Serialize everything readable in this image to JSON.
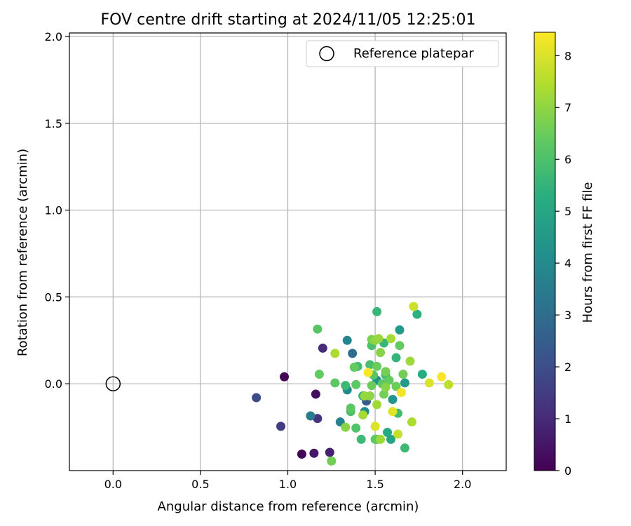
{
  "chart_data": {
    "type": "scatter",
    "title": "FOV centre drift starting at 2024/11/05 12:25:01",
    "xlabel": "Angular distance from reference (arcmin)",
    "ylabel": "Rotation from reference (arcmin)",
    "xlim": [
      -0.25,
      2.25
    ],
    "ylim": [
      -0.5,
      2.02
    ],
    "xticks": [
      0.0,
      0.5,
      1.0,
      1.5,
      2.0
    ],
    "xtick_labels": [
      "0.0",
      "0.5",
      "1.0",
      "1.5",
      "2.0"
    ],
    "yticks": [
      0.0,
      0.5,
      1.0,
      1.5,
      2.0
    ],
    "ytick_labels": [
      "0.0",
      "0.5",
      "1.0",
      "1.5",
      "2.0"
    ],
    "grid": true,
    "legend": {
      "placement": "top-right",
      "entries": [
        "Reference platepar"
      ]
    },
    "reference_point": {
      "x": 0.0,
      "y": 0.0
    },
    "colorbar": {
      "label": "Hours from first FF file",
      "colormap": "viridis",
      "range": [
        0,
        8.45
      ],
      "ticks": [
        0,
        1,
        2,
        3,
        4,
        5,
        6,
        7,
        8
      ],
      "tick_labels": [
        "0",
        "1",
        "2",
        "3",
        "4",
        "5",
        "6",
        "7",
        "8"
      ]
    },
    "points": [
      {
        "x": 0.98,
        "y": 0.04,
        "c": 0.1
      },
      {
        "x": 1.08,
        "y": -0.405,
        "c": 0.1
      },
      {
        "x": 1.16,
        "y": -0.06,
        "c": 0.3
      },
      {
        "x": 1.15,
        "y": -0.4,
        "c": 0.5
      },
      {
        "x": 1.24,
        "y": -0.395,
        "c": 0.8
      },
      {
        "x": 1.2,
        "y": 0.205,
        "c": 1.0
      },
      {
        "x": 1.17,
        "y": -0.2,
        "c": 1.2
      },
      {
        "x": 0.96,
        "y": -0.245,
        "c": 1.5
      },
      {
        "x": 0.82,
        "y": -0.08,
        "c": 1.9
      },
      {
        "x": 1.45,
        "y": -0.1,
        "c": 2.4
      },
      {
        "x": 1.37,
        "y": 0.175,
        "c": 3.0
      },
      {
        "x": 1.13,
        "y": -0.185,
        "c": 3.5
      },
      {
        "x": 1.3,
        "y": -0.22,
        "c": 3.7
      },
      {
        "x": 1.34,
        "y": 0.25,
        "c": 3.8
      },
      {
        "x": 1.34,
        "y": -0.035,
        "c": 4.0
      },
      {
        "x": 1.44,
        "y": -0.16,
        "c": 4.1
      },
      {
        "x": 1.51,
        "y": 0.02,
        "c": 4.3
      },
      {
        "x": 1.6,
        "y": -0.09,
        "c": 4.4
      },
      {
        "x": 1.64,
        "y": 0.31,
        "c": 4.5
      },
      {
        "x": 1.67,
        "y": 0.005,
        "c": 4.6
      },
      {
        "x": 1.59,
        "y": -0.32,
        "c": 4.9
      },
      {
        "x": 1.57,
        "y": -0.28,
        "c": 5.1
      },
      {
        "x": 1.77,
        "y": 0.055,
        "c": 5.2
      },
      {
        "x": 1.74,
        "y": 0.4,
        "c": 5.4
      },
      {
        "x": 1.43,
        "y": -0.07,
        "c": 5.4
      },
      {
        "x": 1.51,
        "y": 0.415,
        "c": 5.6
      },
      {
        "x": 1.55,
        "y": 0.235,
        "c": 5.6
      },
      {
        "x": 1.62,
        "y": 0.15,
        "c": 5.5
      },
      {
        "x": 1.4,
        "y": 0.1,
        "c": 5.8
      },
      {
        "x": 1.47,
        "y": 0.11,
        "c": 5.9
      },
      {
        "x": 1.33,
        "y": -0.01,
        "c": 5.7
      },
      {
        "x": 1.56,
        "y": 0.05,
        "c": 5.8
      },
      {
        "x": 1.48,
        "y": 0.22,
        "c": 6.0
      },
      {
        "x": 1.63,
        "y": -0.17,
        "c": 5.8
      },
      {
        "x": 1.51,
        "y": -0.32,
        "c": 5.9
      },
      {
        "x": 1.67,
        "y": -0.37,
        "c": 5.7
      },
      {
        "x": 1.42,
        "y": -0.32,
        "c": 5.7
      },
      {
        "x": 1.36,
        "y": -0.16,
        "c": 6.0
      },
      {
        "x": 1.39,
        "y": -0.255,
        "c": 6.1
      },
      {
        "x": 1.17,
        "y": 0.315,
        "c": 6.2
      },
      {
        "x": 1.18,
        "y": 0.055,
        "c": 6.4
      },
      {
        "x": 1.27,
        "y": 0.005,
        "c": 6.3
      },
      {
        "x": 1.39,
        "y": -0.005,
        "c": 6.3
      },
      {
        "x": 1.38,
        "y": 0.095,
        "c": 6.4
      },
      {
        "x": 1.48,
        "y": -0.01,
        "c": 6.5
      },
      {
        "x": 1.49,
        "y": 0.05,
        "c": 6.2
      },
      {
        "x": 1.51,
        "y": 0.1,
        "c": 6.5
      },
      {
        "x": 1.54,
        "y": 0.0,
        "c": 6.3
      },
      {
        "x": 1.56,
        "y": 0.07,
        "c": 6.6
      },
      {
        "x": 1.58,
        "y": 0.02,
        "c": 6.4
      },
      {
        "x": 1.62,
        "y": -0.015,
        "c": 6.5
      },
      {
        "x": 1.64,
        "y": 0.22,
        "c": 6.4
      },
      {
        "x": 1.66,
        "y": 0.055,
        "c": 6.6
      },
      {
        "x": 1.5,
        "y": -0.32,
        "c": 6.3
      },
      {
        "x": 1.55,
        "y": -0.06,
        "c": 6.6
      },
      {
        "x": 1.36,
        "y": -0.14,
        "c": 6.3
      },
      {
        "x": 1.48,
        "y": 0.255,
        "c": 6.7
      },
      {
        "x": 1.53,
        "y": 0.18,
        "c": 6.9
      },
      {
        "x": 1.5,
        "y": 0.25,
        "c": 7.0
      },
      {
        "x": 1.56,
        "y": -0.02,
        "c": 6.9
      },
      {
        "x": 1.47,
        "y": -0.07,
        "c": 7.0
      },
      {
        "x": 1.44,
        "y": -0.07,
        "c": 7.1
      },
      {
        "x": 1.51,
        "y": -0.12,
        "c": 7.2
      },
      {
        "x": 1.33,
        "y": -0.25,
        "c": 6.9
      },
      {
        "x": 1.25,
        "y": -0.445,
        "c": 6.6
      },
      {
        "x": 1.43,
        "y": -0.18,
        "c": 7.3
      },
      {
        "x": 1.53,
        "y": -0.32,
        "c": 7.2
      },
      {
        "x": 1.59,
        "y": 0.26,
        "c": 7.3
      },
      {
        "x": 1.52,
        "y": 0.26,
        "c": 7.1
      },
      {
        "x": 1.7,
        "y": 0.13,
        "c": 7.2
      },
      {
        "x": 1.71,
        "y": -0.22,
        "c": 7.4
      },
      {
        "x": 1.27,
        "y": 0.175,
        "c": 7.4
      },
      {
        "x": 1.63,
        "y": -0.29,
        "c": 7.7
      },
      {
        "x": 1.92,
        "y": -0.005,
        "c": 7.6
      },
      {
        "x": 1.72,
        "y": 0.445,
        "c": 7.8
      },
      {
        "x": 1.5,
        "y": -0.245,
        "c": 8.0
      },
      {
        "x": 1.81,
        "y": 0.005,
        "c": 8.0
      },
      {
        "x": 1.6,
        "y": -0.16,
        "c": 8.1
      },
      {
        "x": 1.65,
        "y": -0.05,
        "c": 8.3
      },
      {
        "x": 1.88,
        "y": 0.04,
        "c": 8.4
      },
      {
        "x": 1.46,
        "y": 0.065,
        "c": 8.4
      }
    ]
  }
}
